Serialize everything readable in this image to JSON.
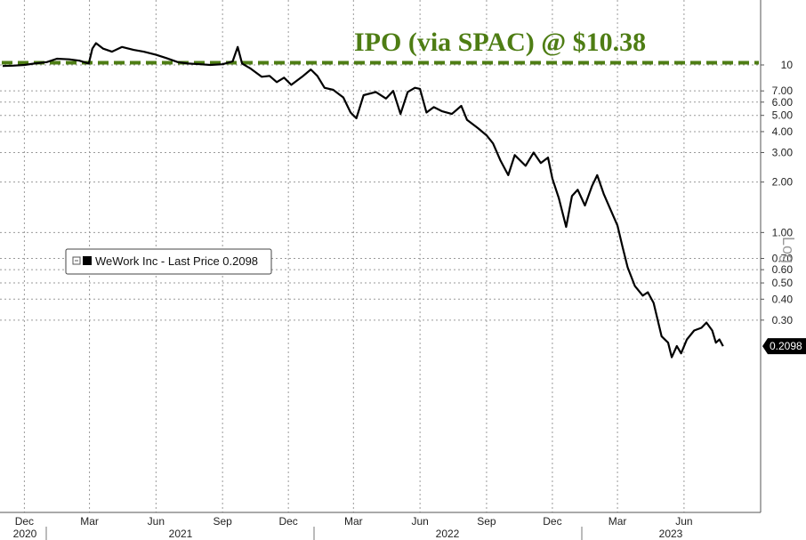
{
  "chart_data": {
    "type": "line",
    "annotation": "IPO (via SPAC) @ $10.38",
    "reference_line": 10.38,
    "y_axis": {
      "scale": "log",
      "label": "Log",
      "ticks": [
        {
          "value": 10,
          "label": "10"
        },
        {
          "value": 7,
          "label": "7.00"
        },
        {
          "value": 6,
          "label": "6.00"
        },
        {
          "value": 5,
          "label": "5.00"
        },
        {
          "value": 4,
          "label": "4.00"
        },
        {
          "value": 3,
          "label": "3.00"
        },
        {
          "value": 2,
          "label": "2.00"
        },
        {
          "value": 1,
          "label": "1.00"
        },
        {
          "value": 0.7,
          "label": "0.70"
        },
        {
          "value": 0.6,
          "label": "0.60"
        },
        {
          "value": 0.5,
          "label": "0.50"
        },
        {
          "value": 0.4,
          "label": "0.40"
        },
        {
          "value": 0.3,
          "label": "0.30"
        }
      ]
    },
    "x_axis": {
      "month_ticks": [
        {
          "date": "2020-12-01",
          "label": "Dec"
        },
        {
          "date": "2021-03-01",
          "label": "Mar"
        },
        {
          "date": "2021-06-01",
          "label": "Jun"
        },
        {
          "date": "2021-09-01",
          "label": "Sep"
        },
        {
          "date": "2021-12-01",
          "label": "Dec"
        },
        {
          "date": "2022-03-01",
          "label": "Mar"
        },
        {
          "date": "2022-06-01",
          "label": "Jun"
        },
        {
          "date": "2022-09-01",
          "label": "Sep"
        },
        {
          "date": "2022-12-01",
          "label": "Dec"
        },
        {
          "date": "2023-03-01",
          "label": "Mar"
        },
        {
          "date": "2023-06-01",
          "label": "Jun"
        }
      ],
      "year_labels": [
        {
          "label": "2020"
        },
        {
          "label": "2021"
        },
        {
          "label": "2022"
        },
        {
          "label": "2023"
        }
      ]
    },
    "grid": true,
    "legend": {
      "position": "left",
      "entry": "WeWork Inc - Last Price 0.2098"
    },
    "last_value_label": "0.2098",
    "series": [
      {
        "name": "WeWork Inc - Last Price",
        "color": "#000000",
        "points": [
          [
            "2020-11-01",
            9.85
          ],
          [
            "2020-11-15",
            9.9
          ],
          [
            "2020-12-01",
            10.0
          ],
          [
            "2020-12-15",
            10.2
          ],
          [
            "2021-01-01",
            10.4
          ],
          [
            "2021-01-15",
            10.9
          ],
          [
            "2021-02-01",
            10.8
          ],
          [
            "2021-02-15",
            10.6
          ],
          [
            "2021-02-28",
            10.2
          ],
          [
            "2021-03-05",
            12.5
          ],
          [
            "2021-03-10",
            13.5
          ],
          [
            "2021-03-20",
            12.5
          ],
          [
            "2021-04-01",
            12.0
          ],
          [
            "2021-04-15",
            12.8
          ],
          [
            "2021-05-01",
            12.3
          ],
          [
            "2021-05-15",
            12.0
          ],
          [
            "2021-06-01",
            11.5
          ],
          [
            "2021-06-15",
            11.0
          ],
          [
            "2021-07-01",
            10.4
          ],
          [
            "2021-07-15",
            10.2
          ],
          [
            "2021-08-01",
            10.1
          ],
          [
            "2021-08-15",
            10.0
          ],
          [
            "2021-09-01",
            10.1
          ],
          [
            "2021-09-15",
            10.5
          ],
          [
            "2021-09-22",
            12.8
          ],
          [
            "2021-09-28",
            10.2
          ],
          [
            "2021-10-10",
            9.5
          ],
          [
            "2021-10-25",
            8.5
          ],
          [
            "2021-11-05",
            8.6
          ],
          [
            "2021-11-15",
            7.9
          ],
          [
            "2021-11-25",
            8.4
          ],
          [
            "2021-12-05",
            7.6
          ],
          [
            "2021-12-20",
            8.5
          ],
          [
            "2022-01-01",
            9.4
          ],
          [
            "2022-01-10",
            8.6
          ],
          [
            "2022-01-20",
            7.3
          ],
          [
            "2022-02-01",
            7.1
          ],
          [
            "2022-02-15",
            6.4
          ],
          [
            "2022-02-25",
            5.2
          ],
          [
            "2022-03-05",
            4.8
          ],
          [
            "2022-03-15",
            6.6
          ],
          [
            "2022-04-01",
            6.9
          ],
          [
            "2022-04-15",
            6.3
          ],
          [
            "2022-04-25",
            7.0
          ],
          [
            "2022-05-05",
            5.1
          ],
          [
            "2022-05-15",
            6.9
          ],
          [
            "2022-05-25",
            7.3
          ],
          [
            "2022-06-01",
            7.2
          ],
          [
            "2022-06-10",
            5.2
          ],
          [
            "2022-06-20",
            5.6
          ],
          [
            "2022-07-01",
            5.3
          ],
          [
            "2022-07-15",
            5.1
          ],
          [
            "2022-07-28",
            5.7
          ],
          [
            "2022-08-05",
            4.7
          ],
          [
            "2022-08-20",
            4.2
          ],
          [
            "2022-09-01",
            3.8
          ],
          [
            "2022-09-10",
            3.4
          ],
          [
            "2022-09-20",
            2.7
          ],
          [
            "2022-10-01",
            2.2
          ],
          [
            "2022-10-10",
            2.9
          ],
          [
            "2022-10-25",
            2.5
          ],
          [
            "2022-11-05",
            3.0
          ],
          [
            "2022-11-15",
            2.6
          ],
          [
            "2022-11-25",
            2.8
          ],
          [
            "2022-12-01",
            2.1
          ],
          [
            "2022-12-10",
            1.6
          ],
          [
            "2022-12-20",
            1.08
          ],
          [
            "2022-12-28",
            1.65
          ],
          [
            "2023-01-05",
            1.8
          ],
          [
            "2023-01-15",
            1.45
          ],
          [
            "2023-01-25",
            1.9
          ],
          [
            "2023-02-01",
            2.2
          ],
          [
            "2023-02-10",
            1.7
          ],
          [
            "2023-02-20",
            1.35
          ],
          [
            "2023-03-01",
            1.1
          ],
          [
            "2023-03-08",
            0.82
          ],
          [
            "2023-03-15",
            0.62
          ],
          [
            "2023-03-25",
            0.48
          ],
          [
            "2023-04-05",
            0.42
          ],
          [
            "2023-04-12",
            0.44
          ],
          [
            "2023-04-20",
            0.38
          ],
          [
            "2023-05-01",
            0.24
          ],
          [
            "2023-05-10",
            0.22
          ],
          [
            "2023-05-15",
            0.18
          ],
          [
            "2023-05-22",
            0.21
          ],
          [
            "2023-05-28",
            0.19
          ],
          [
            "2023-06-05",
            0.23
          ],
          [
            "2023-06-15",
            0.26
          ],
          [
            "2023-06-25",
            0.27
          ],
          [
            "2023-07-02",
            0.29
          ],
          [
            "2023-07-10",
            0.26
          ],
          [
            "2023-07-15",
            0.22
          ],
          [
            "2023-07-20",
            0.23
          ],
          [
            "2023-07-25",
            0.2098
          ]
        ]
      }
    ],
    "colors": {
      "annotation": "#4e7d14",
      "reference_line": "#4e7d14",
      "grid": "#9a9a9a",
      "series": "#000000",
      "last_value_bg": "#000000"
    }
  }
}
